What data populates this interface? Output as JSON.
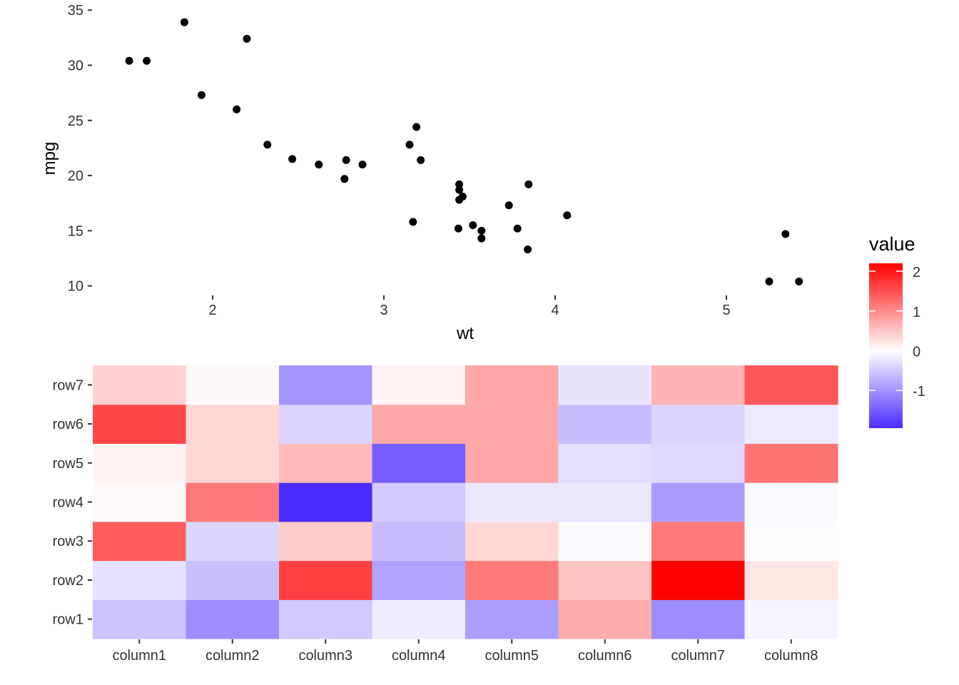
{
  "chart_data": [
    {
      "type": "scatter",
      "xlabel": "wt",
      "ylabel": "mpg",
      "xlim": [
        1.3,
        5.65
      ],
      "ylim": [
        9.2,
        35.4
      ],
      "xticks": [
        2,
        3,
        4,
        5
      ],
      "yticks": [
        10,
        15,
        20,
        25,
        30,
        35
      ],
      "grid": false,
      "point_color": "#000000",
      "points": [
        {
          "x": 2.62,
          "y": 21.0
        },
        {
          "x": 2.875,
          "y": 21.0
        },
        {
          "x": 2.32,
          "y": 22.8
        },
        {
          "x": 3.215,
          "y": 21.4
        },
        {
          "x": 3.44,
          "y": 18.7
        },
        {
          "x": 3.46,
          "y": 18.1
        },
        {
          "x": 3.57,
          "y": 14.3
        },
        {
          "x": 3.19,
          "y": 24.4
        },
        {
          "x": 3.15,
          "y": 22.8
        },
        {
          "x": 3.44,
          "y": 19.2
        },
        {
          "x": 3.44,
          "y": 17.8
        },
        {
          "x": 4.07,
          "y": 16.4
        },
        {
          "x": 3.73,
          "y": 17.3
        },
        {
          "x": 3.78,
          "y": 15.2
        },
        {
          "x": 5.25,
          "y": 10.4
        },
        {
          "x": 5.424,
          "y": 10.4
        },
        {
          "x": 5.345,
          "y": 14.7
        },
        {
          "x": 2.2,
          "y": 32.4
        },
        {
          "x": 1.615,
          "y": 30.4
        },
        {
          "x": 1.835,
          "y": 33.9
        },
        {
          "x": 2.465,
          "y": 21.5
        },
        {
          "x": 3.52,
          "y": 15.5
        },
        {
          "x": 3.435,
          "y": 15.2
        },
        {
          "x": 3.84,
          "y": 13.3
        },
        {
          "x": 3.845,
          "y": 19.2
        },
        {
          "x": 1.935,
          "y": 27.3
        },
        {
          "x": 2.14,
          "y": 26.0
        },
        {
          "x": 1.513,
          "y": 30.4
        },
        {
          "x": 3.17,
          "y": 15.8
        },
        {
          "x": 2.77,
          "y": 19.7
        },
        {
          "x": 3.57,
          "y": 15.0
        },
        {
          "x": 2.78,
          "y": 21.4
        }
      ]
    },
    {
      "type": "heatmap",
      "x": [
        "column1",
        "column2",
        "column3",
        "column4",
        "column5",
        "column6",
        "column7",
        "column8"
      ],
      "y": [
        "row1",
        "row2",
        "row3",
        "row4",
        "row5",
        "row6",
        "row7"
      ],
      "values": [
        [
          -0.55,
          -1.05,
          -0.5,
          -0.18,
          -0.9,
          0.7,
          -1.05,
          -0.1
        ],
        [
          -0.28,
          -0.58,
          1.65,
          -0.85,
          1.15,
          0.5,
          2.2,
          0.22
        ],
        [
          1.4,
          -0.38,
          0.45,
          -0.6,
          0.35,
          -0.05,
          1.15,
          -0.02
        ],
        [
          0.05,
          1.15,
          -1.95,
          -0.5,
          -0.22,
          -0.22,
          -0.92,
          -0.05
        ],
        [
          0.1,
          0.35,
          0.6,
          -1.5,
          0.75,
          -0.3,
          -0.35,
          1.2
        ],
        [
          1.6,
          0.35,
          -0.4,
          0.75,
          0.75,
          -0.6,
          -0.38,
          -0.2
        ],
        [
          0.4,
          0.06,
          -0.98,
          0.1,
          0.75,
          -0.25,
          0.65,
          1.45
        ]
      ],
      "legend": {
        "title": "value",
        "breaks": [
          2,
          1,
          0,
          -1
        ],
        "limits": [
          -1.95,
          2.2
        ],
        "placement": "right",
        "colors": {
          "low": "#4B2CFF",
          "mid": "#FFFFFF",
          "high": "#FF0000"
        }
      }
    }
  ]
}
